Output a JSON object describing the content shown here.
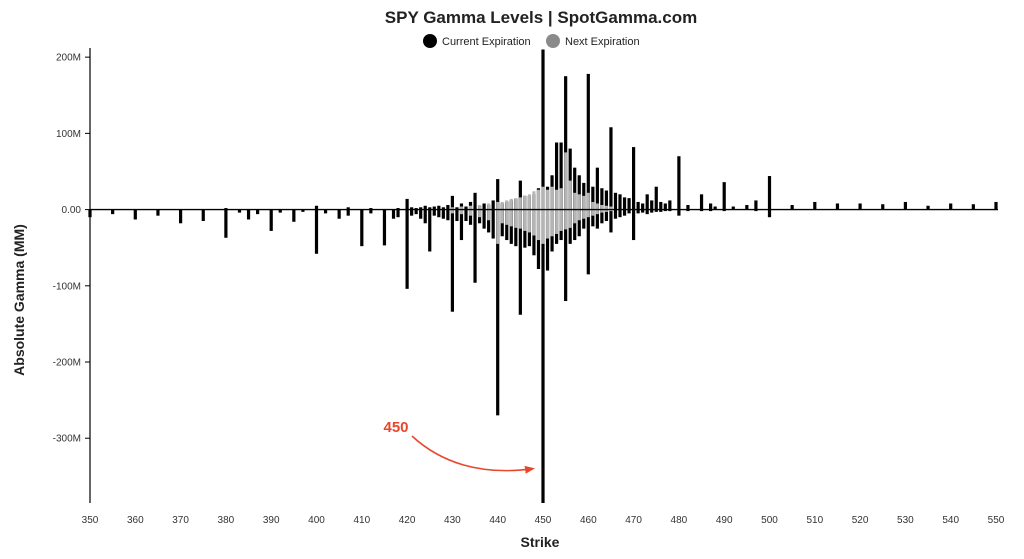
{
  "chart_data": {
    "type": "bar",
    "title": "SPY Gamma Levels | SpotGamma.com",
    "xlabel": "Strike",
    "ylabel": "Absolute Gamma (MM)",
    "xlim": [
      350,
      550
    ],
    "ylim": [
      -385,
      212
    ],
    "x_ticks": [
      350,
      360,
      370,
      380,
      390,
      400,
      410,
      420,
      430,
      440,
      450,
      460,
      470,
      480,
      490,
      500,
      510,
      520,
      530,
      540,
      550
    ],
    "y_ticks": [
      {
        "value": 200,
        "label": "200M"
      },
      {
        "value": 100,
        "label": "100M"
      },
      {
        "value": 0,
        "label": "0.00"
      },
      {
        "value": -100,
        "label": "-100M"
      },
      {
        "value": -200,
        "label": "-200M"
      },
      {
        "value": -300,
        "label": "-300M"
      }
    ],
    "legend": {
      "placement": "top-center"
    },
    "colors": {
      "current": "#000000",
      "next": "#b5b5b5",
      "next_legend": "#8a8a8a",
      "annotation": "#e8472d"
    },
    "series": [
      {
        "name": "Current Expiration",
        "color": "#000000",
        "points": [
          [
            350,
            0,
            -10
          ],
          [
            355,
            0,
            -6
          ],
          [
            360,
            0,
            -13
          ],
          [
            365,
            0,
            -8
          ],
          [
            370,
            0,
            -18
          ],
          [
            375,
            0,
            -15
          ],
          [
            380,
            2,
            -37
          ],
          [
            383,
            0,
            -4
          ],
          [
            385,
            0,
            -13
          ],
          [
            387,
            0,
            -6
          ],
          [
            390,
            0,
            -28
          ],
          [
            392,
            0,
            -4
          ],
          [
            395,
            0,
            -16
          ],
          [
            397,
            0,
            -3
          ],
          [
            400,
            5,
            -58
          ],
          [
            402,
            0,
            -5
          ],
          [
            405,
            0,
            -12
          ],
          [
            407,
            3,
            -8
          ],
          [
            410,
            0,
            -48
          ],
          [
            412,
            2,
            -5
          ],
          [
            415,
            0,
            -47
          ],
          [
            417,
            0,
            -12
          ],
          [
            418,
            2,
            -10
          ],
          [
            420,
            14,
            -104
          ],
          [
            421,
            3,
            -8
          ],
          [
            422,
            2,
            -6
          ],
          [
            423,
            3,
            -12
          ],
          [
            424,
            5,
            -18
          ],
          [
            425,
            3,
            -55
          ],
          [
            426,
            4,
            -8
          ],
          [
            427,
            5,
            -10
          ],
          [
            428,
            3,
            -12
          ],
          [
            429,
            6,
            -14
          ],
          [
            430,
            18,
            -134
          ],
          [
            431,
            3,
            -15
          ],
          [
            432,
            8,
            -40
          ],
          [
            433,
            4,
            -15
          ],
          [
            434,
            10,
            -20
          ],
          [
            435,
            22,
            -96
          ],
          [
            436,
            5,
            -18
          ],
          [
            437,
            8,
            -25
          ],
          [
            438,
            6,
            -30
          ],
          [
            439,
            12,
            -38
          ],
          [
            440,
            40,
            -270
          ],
          [
            441,
            8,
            -35
          ],
          [
            442,
            10,
            -40
          ],
          [
            443,
            12,
            -45
          ],
          [
            444,
            14,
            -48
          ],
          [
            445,
            38,
            -138
          ],
          [
            446,
            18,
            -50
          ],
          [
            447,
            18,
            -48
          ],
          [
            448,
            20,
            -60
          ],
          [
            449,
            28,
            -78
          ],
          [
            450,
            210,
            -385
          ],
          [
            451,
            30,
            -80
          ],
          [
            452,
            45,
            -55
          ],
          [
            453,
            88,
            -45
          ],
          [
            454,
            88,
            -40
          ],
          [
            455,
            175,
            -120
          ],
          [
            456,
            80,
            -45
          ],
          [
            457,
            55,
            -40
          ],
          [
            458,
            45,
            -35
          ],
          [
            459,
            35,
            -25
          ],
          [
            460,
            178,
            -85
          ],
          [
            461,
            30,
            -22
          ],
          [
            462,
            55,
            -25
          ],
          [
            463,
            28,
            -18
          ],
          [
            464,
            25,
            -15
          ],
          [
            465,
            108,
            -30
          ],
          [
            466,
            22,
            -12
          ],
          [
            467,
            20,
            -10
          ],
          [
            468,
            16,
            -8
          ],
          [
            469,
            15,
            -5
          ],
          [
            470,
            82,
            -40
          ],
          [
            471,
            10,
            -5
          ],
          [
            472,
            8,
            -4
          ],
          [
            473,
            20,
            -6
          ],
          [
            474,
            12,
            -4
          ],
          [
            475,
            30,
            -3
          ],
          [
            476,
            10,
            -3
          ],
          [
            477,
            8,
            -2
          ],
          [
            478,
            12,
            -2
          ],
          [
            480,
            70,
            -8
          ],
          [
            482,
            6,
            -2
          ],
          [
            485,
            20,
            -2
          ],
          [
            487,
            8,
            -2
          ],
          [
            488,
            4,
            0
          ],
          [
            490,
            36,
            -2
          ],
          [
            492,
            4,
            0
          ],
          [
            495,
            6,
            0
          ],
          [
            497,
            12,
            -2
          ],
          [
            500,
            44,
            -10
          ],
          [
            505,
            6,
            0
          ],
          [
            510,
            10,
            0
          ],
          [
            515,
            8,
            0
          ],
          [
            520,
            8,
            0
          ],
          [
            525,
            7,
            0
          ],
          [
            530,
            10,
            0
          ],
          [
            535,
            5,
            0
          ],
          [
            540,
            8,
            0
          ],
          [
            545,
            7,
            0
          ],
          [
            550,
            10,
            0
          ]
        ]
      },
      {
        "name": "Next Expiration",
        "color": "#b5b5b5",
        "points": [
          [
            430,
            3,
            -5
          ],
          [
            432,
            4,
            -6
          ],
          [
            434,
            5,
            -8
          ],
          [
            436,
            6,
            -10
          ],
          [
            438,
            8,
            -14
          ],
          [
            440,
            10,
            -45
          ],
          [
            441,
            10,
            -18
          ],
          [
            442,
            12,
            -20
          ],
          [
            443,
            14,
            -22
          ],
          [
            444,
            15,
            -24
          ],
          [
            445,
            16,
            -25
          ],
          [
            446,
            18,
            -28
          ],
          [
            447,
            20,
            -30
          ],
          [
            448,
            24,
            -34
          ],
          [
            449,
            26,
            -40
          ],
          [
            450,
            30,
            -45
          ],
          [
            451,
            26,
            -38
          ],
          [
            452,
            30,
            -35
          ],
          [
            453,
            26,
            -32
          ],
          [
            454,
            28,
            -28
          ],
          [
            455,
            75,
            -26
          ],
          [
            456,
            38,
            -24
          ],
          [
            457,
            22,
            -18
          ],
          [
            458,
            20,
            -14
          ],
          [
            459,
            18,
            -12
          ],
          [
            460,
            22,
            -10
          ],
          [
            461,
            10,
            -8
          ],
          [
            462,
            8,
            -6
          ],
          [
            463,
            6,
            -4
          ],
          [
            464,
            5,
            -3
          ],
          [
            465,
            4,
            -2
          ]
        ]
      }
    ],
    "annotations": [
      {
        "text": "450",
        "target_strike": 450,
        "target_value": -340
      }
    ]
  }
}
